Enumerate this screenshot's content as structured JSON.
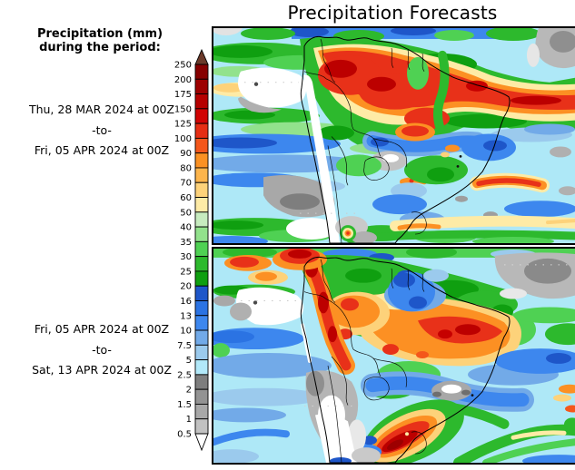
{
  "title": "Precipitation Forecasts",
  "sidebar": {
    "heading_line1": "Precipitation (mm)",
    "heading_line2": "during the period:",
    "periods": [
      {
        "start": "Thu, 28 MAR 2024 at 00Z",
        "separator": "-to-",
        "end": "Fri, 05 APR 2024 at 00Z"
      },
      {
        "start": "Fri, 05 APR 2024 at 00Z",
        "separator": "-to-",
        "end": "Sat, 13 APR 2024 at 00Z"
      }
    ]
  },
  "colorbar": {
    "unit": "mm",
    "tick_labels": [
      "250",
      "200",
      "175",
      "150",
      "125",
      "100",
      "90",
      "80",
      "70",
      "60",
      "50",
      "40",
      "35",
      "30",
      "25",
      "20",
      "16",
      "13",
      "10",
      "7.5",
      "5",
      "2.5",
      "2",
      "1.5",
      "1",
      "0.5"
    ],
    "cell_colors_top_to_bottom": [
      "#870000",
      "#9d0000",
      "#b60000",
      "#d10404",
      "#e62e14",
      "#f4571b",
      "#fb9123",
      "#fdb54c",
      "#fdd27a",
      "#feeba6",
      "#c7ecbf",
      "#92e28c",
      "#4fd153",
      "#2db92d",
      "#0f9f10",
      "#1e56c9",
      "#2b73e3",
      "#3d87ee",
      "#72aae8",
      "#9bcaed",
      "#b2e9f9",
      "#7e7e7e",
      "#939393",
      "#a8a8a8",
      "#c2c2c2"
    ],
    "top_arrow_color": "#6b3a2a",
    "bottom_arrow_color": "#ffffff"
  }
}
